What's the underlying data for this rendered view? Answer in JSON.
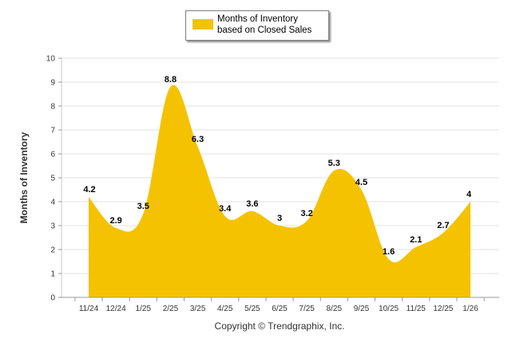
{
  "chart_data": {
    "type": "area",
    "title": "",
    "legend": {
      "label": "Months of Inventory based on Closed Sales",
      "color": "#f5c200",
      "placement": "top-center"
    },
    "ylabel": "Months of Inventory",
    "xlabel": "",
    "ylim": [
      0,
      10
    ],
    "yticks": [
      "0",
      "1",
      "2",
      "3",
      "4",
      "5",
      "6",
      "7",
      "8",
      "9",
      "10"
    ],
    "grid": true,
    "categories": [
      "11/24",
      "12/24",
      "1/25",
      "2/25",
      "3/25",
      "4/25",
      "5/25",
      "6/25",
      "7/25",
      "8/25",
      "9/25",
      "10/25",
      "11/25",
      "12/25",
      "1/26"
    ],
    "series": [
      {
        "name": "Months of Inventory based on Closed Sales",
        "color": "#f5c200",
        "values": [
          4.2,
          2.9,
          3.5,
          8.8,
          6.3,
          3.4,
          3.6,
          3,
          3.2,
          5.3,
          4.5,
          1.6,
          2.1,
          2.7,
          4
        ],
        "labels": [
          "4.2",
          "2.9",
          "3.5",
          "8.8",
          "6.3",
          "3.4",
          "3.6",
          "3",
          "3.2",
          "5.3",
          "4.5",
          "1.6",
          "2.1",
          "2.7",
          "4"
        ]
      }
    ]
  },
  "footer": {
    "copyright": "Copyright © Trendgraphix, Inc."
  }
}
